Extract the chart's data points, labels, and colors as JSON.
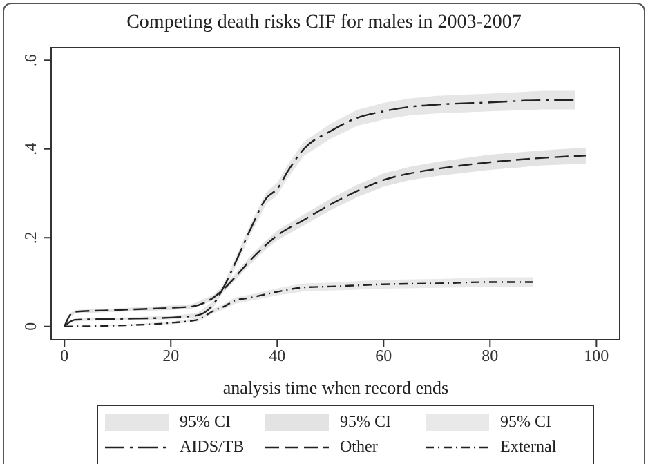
{
  "chart_data": {
    "type": "line",
    "title": "Competing death risks CIF for males in 2003-2007",
    "xlabel": "analysis time when record ends",
    "xlim": [
      -2.5,
      104.5
    ],
    "xticks": [
      0,
      20,
      40,
      60,
      80,
      100
    ],
    "ylim": [
      -0.03,
      0.63
    ],
    "yticks": [
      {
        "value": 0,
        "label": "0"
      },
      {
        "value": 0.2,
        "label": ".2"
      },
      {
        "value": 0.4,
        "label": ".4"
      },
      {
        "value": 0.6,
        "label": ".6"
      }
    ],
    "grid": false,
    "legend": "bottom",
    "marker": "none",
    "line_style": "dashed",
    "annotations": [
      "95% CI",
      "95% CI",
      "95% CI"
    ],
    "series": [
      {
        "name": "AIDS/TB",
        "color": "#222222",
        "x": [
          0,
          1,
          2,
          10,
          20,
          25,
          28,
          30,
          32,
          35,
          38,
          40,
          42,
          45,
          50,
          55,
          60,
          65,
          70,
          80,
          90,
          96
        ],
        "values": [
          0,
          0.01,
          0.015,
          0.017,
          0.02,
          0.025,
          0.05,
          0.09,
          0.14,
          0.22,
          0.29,
          0.31,
          0.35,
          0.4,
          0.44,
          0.47,
          0.485,
          0.495,
          0.5,
          0.505,
          0.51,
          0.51
        ],
        "lower": [
          0,
          0.007,
          0.012,
          0.014,
          0.016,
          0.02,
          0.043,
          0.081,
          0.13,
          0.208,
          0.277,
          0.296,
          0.335,
          0.384,
          0.423,
          0.452,
          0.466,
          0.476,
          0.48,
          0.485,
          0.489,
          0.489
        ],
        "upper": [
          0,
          0.013,
          0.018,
          0.02,
          0.024,
          0.03,
          0.057,
          0.099,
          0.15,
          0.232,
          0.303,
          0.324,
          0.365,
          0.416,
          0.457,
          0.488,
          0.504,
          0.514,
          0.52,
          0.525,
          0.531,
          0.531
        ]
      },
      {
        "name": "Other",
        "color": "#222222",
        "x": [
          0,
          1,
          2,
          10,
          20,
          24,
          28,
          30,
          32,
          35,
          38,
          40,
          45,
          50,
          55,
          60,
          65,
          70,
          80,
          90,
          98
        ],
        "values": [
          0,
          0.025,
          0.033,
          0.037,
          0.042,
          0.045,
          0.065,
          0.085,
          0.11,
          0.15,
          0.185,
          0.205,
          0.24,
          0.275,
          0.305,
          0.33,
          0.345,
          0.355,
          0.37,
          0.38,
          0.385
        ],
        "lower": [
          0,
          0.021,
          0.029,
          0.033,
          0.037,
          0.04,
          0.059,
          0.078,
          0.102,
          0.141,
          0.175,
          0.194,
          0.228,
          0.262,
          0.291,
          0.315,
          0.33,
          0.339,
          0.353,
          0.363,
          0.367
        ],
        "upper": [
          0,
          0.029,
          0.037,
          0.041,
          0.047,
          0.05,
          0.071,
          0.092,
          0.118,
          0.159,
          0.195,
          0.216,
          0.252,
          0.288,
          0.319,
          0.345,
          0.36,
          0.371,
          0.387,
          0.397,
          0.403
        ]
      },
      {
        "name": "External",
        "color": "#222222",
        "x": [
          0,
          10,
          20,
          25,
          28,
          30,
          32,
          35,
          40,
          45,
          50,
          60,
          70,
          80,
          88
        ],
        "values": [
          0,
          0.002,
          0.008,
          0.015,
          0.035,
          0.045,
          0.058,
          0.065,
          0.078,
          0.088,
          0.09,
          0.095,
          0.097,
          0.1,
          0.1
        ],
        "lower": [
          0,
          0.001,
          0.005,
          0.011,
          0.03,
          0.039,
          0.051,
          0.058,
          0.07,
          0.079,
          0.081,
          0.085,
          0.087,
          0.089,
          0.089
        ],
        "upper": [
          0,
          0.003,
          0.011,
          0.019,
          0.04,
          0.051,
          0.065,
          0.072,
          0.086,
          0.097,
          0.099,
          0.105,
          0.107,
          0.111,
          0.111
        ]
      }
    ]
  }
}
